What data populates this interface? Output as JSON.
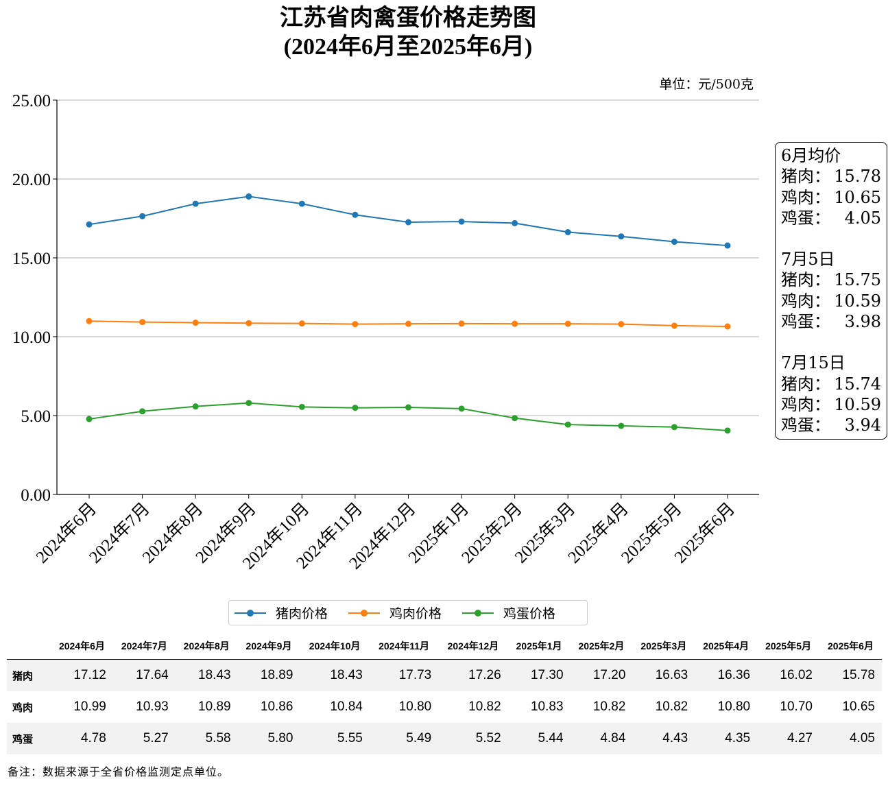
{
  "title": "江苏省肉禽蛋价格走势图",
  "subtitle": "(2024年6月至2025年6月)",
  "unit": "单位：元/500克",
  "chart_data": {
    "type": "line",
    "categories": [
      "2024年6月",
      "2024年7月",
      "2024年8月",
      "2024年9月",
      "2024年10月",
      "2024年11月",
      "2024年12月",
      "2025年1月",
      "2025年2月",
      "2025年3月",
      "2025年4月",
      "2025年5月",
      "2025年6月"
    ],
    "series": [
      {
        "name": "猪肉价格",
        "color": "#1f77b4",
        "values": [
          17.12,
          17.64,
          18.43,
          18.89,
          18.43,
          17.73,
          17.26,
          17.3,
          17.2,
          16.63,
          16.36,
          16.02,
          15.78
        ]
      },
      {
        "name": "鸡肉价格",
        "color": "#ff7f0e",
        "values": [
          10.99,
          10.93,
          10.89,
          10.86,
          10.84,
          10.8,
          10.82,
          10.83,
          10.82,
          10.82,
          10.8,
          10.7,
          10.65
        ]
      },
      {
        "name": "鸡蛋价格",
        "color": "#2ca02c",
        "values": [
          4.78,
          5.27,
          5.58,
          5.8,
          5.55,
          5.49,
          5.52,
          5.44,
          4.84,
          4.43,
          4.35,
          4.27,
          4.05
        ]
      }
    ],
    "ylim": [
      0,
      25
    ],
    "yticks": [
      "0.00",
      "5.00",
      "10.00",
      "15.00",
      "20.00",
      "25.00"
    ],
    "grid": "horizontal",
    "legend_position": "bottom"
  },
  "infobox": {
    "groups": [
      {
        "title": "6月均价",
        "rows": [
          {
            "label": "猪肉：",
            "value": "15.78"
          },
          {
            "label": "鸡肉：",
            "value": "10.65"
          },
          {
            "label": "鸡蛋：",
            "value": "4.05"
          }
        ]
      },
      {
        "title": "7月5日",
        "rows": [
          {
            "label": "猪肉：",
            "value": "15.75"
          },
          {
            "label": "鸡肉：",
            "value": "10.59"
          },
          {
            "label": "鸡蛋：",
            "value": "3.98"
          }
        ]
      },
      {
        "title": "7月15日",
        "rows": [
          {
            "label": "猪肉：",
            "value": "15.74"
          },
          {
            "label": "鸡肉：",
            "value": "10.59"
          },
          {
            "label": "鸡蛋：",
            "value": "3.94"
          }
        ]
      }
    ]
  },
  "table": {
    "headers": [
      "2024年6月",
      "2024年7月",
      "2024年8月",
      "2024年9月",
      "2024年10月",
      "2024年11月",
      "2024年12月",
      "2025年1月",
      "2025年2月",
      "2025年3月",
      "2025年4月",
      "2025年5月",
      "2025年6月"
    ],
    "rows": [
      {
        "label": "猪肉",
        "values": [
          "17.12",
          "17.64",
          "18.43",
          "18.89",
          "18.43",
          "17.73",
          "17.26",
          "17.30",
          "17.20",
          "16.63",
          "16.36",
          "16.02",
          "15.78"
        ]
      },
      {
        "label": "鸡肉",
        "values": [
          "10.99",
          "10.93",
          "10.89",
          "10.86",
          "10.84",
          "10.80",
          "10.82",
          "10.83",
          "10.82",
          "10.82",
          "10.80",
          "10.70",
          "10.65"
        ]
      },
      {
        "label": "鸡蛋",
        "values": [
          "4.78",
          "5.27",
          "5.58",
          "5.80",
          "5.55",
          "5.49",
          "5.52",
          "5.44",
          "4.84",
          "4.43",
          "4.35",
          "4.27",
          "4.05"
        ]
      }
    ]
  },
  "note": "备注：数据来源于全省价格监测定点单位。"
}
